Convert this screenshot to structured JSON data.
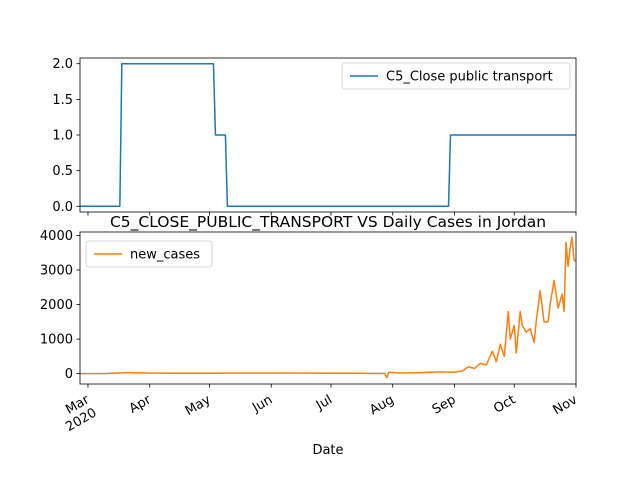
{
  "chart_data": [
    {
      "type": "line",
      "title": "",
      "xlabel": "",
      "ylabel": "",
      "xlim": [
        "2020-02-26",
        "2020-11-01"
      ],
      "ylim": [
        -0.08,
        2.08
      ],
      "yticks": [
        0.0,
        0.5,
        1.0,
        1.5,
        2.0
      ],
      "ytick_labels": [
        "0.0",
        "0.5",
        "1.0",
        "1.5",
        "2.0"
      ],
      "legend_position": "upper right",
      "grid": false,
      "series": [
        {
          "name": "C5_Close public transport",
          "color": "#1f77b4",
          "x": [
            "2020-02-26",
            "2020-03-17",
            "2020-03-18",
            "2020-05-03",
            "2020-05-04",
            "2020-05-09",
            "2020-05-10",
            "2020-08-29",
            "2020-08-30",
            "2020-11-01"
          ],
          "y": [
            0,
            0,
            2,
            2,
            1,
            1,
            0,
            0,
            1,
            1
          ]
        }
      ]
    },
    {
      "type": "line",
      "title": "C5_CLOSE_PUBLIC_TRANSPORT VS Daily Cases in Jordan",
      "xlabel": "Date",
      "ylabel": "",
      "xlim": [
        "2020-02-26",
        "2020-11-01"
      ],
      "ylim": [
        -300,
        4100
      ],
      "yticks": [
        0,
        1000,
        2000,
        3000,
        4000
      ],
      "ytick_labels": [
        "0",
        "1000",
        "2000",
        "3000",
        "4000"
      ],
      "xticks": [
        "2020-03-01",
        "2020-04-01",
        "2020-05-01",
        "2020-06-01",
        "2020-07-01",
        "2020-08-01",
        "2020-09-01",
        "2020-10-01",
        "2020-11-01"
      ],
      "xtick_labels": [
        "Mar\n2020",
        "Apr",
        "May",
        "Jun",
        "Jul",
        "Aug",
        "Sep",
        "Oct",
        "Nov"
      ],
      "legend_position": "upper left",
      "grid": false,
      "series": [
        {
          "name": "new_cases",
          "color": "#ff7f0e",
          "x": [
            "2020-02-26",
            "2020-03-10",
            "2020-03-20",
            "2020-04-01",
            "2020-04-15",
            "2020-05-01",
            "2020-05-15",
            "2020-06-01",
            "2020-06-15",
            "2020-07-01",
            "2020-07-15",
            "2020-07-28",
            "2020-07-29",
            "2020-07-30",
            "2020-08-05",
            "2020-08-15",
            "2020-08-25",
            "2020-09-01",
            "2020-09-05",
            "2020-09-08",
            "2020-09-11",
            "2020-09-14",
            "2020-09-17",
            "2020-09-20",
            "2020-09-22",
            "2020-09-24",
            "2020-09-26",
            "2020-09-28",
            "2020-09-29",
            "2020-10-01",
            "2020-10-02",
            "2020-10-04",
            "2020-10-05",
            "2020-10-07",
            "2020-10-09",
            "2020-10-11",
            "2020-10-12",
            "2020-10-14",
            "2020-10-16",
            "2020-10-18",
            "2020-10-19",
            "2020-10-21",
            "2020-10-23",
            "2020-10-25",
            "2020-10-26",
            "2020-10-27",
            "2020-10-28",
            "2020-10-29",
            "2020-10-30",
            "2020-10-31",
            "2020-11-01"
          ],
          "y": [
            0,
            5,
            30,
            15,
            10,
            10,
            15,
            20,
            15,
            10,
            10,
            5,
            -120,
            40,
            20,
            30,
            50,
            40,
            80,
            200,
            150,
            300,
            250,
            650,
            350,
            850,
            500,
            1800,
            1000,
            1400,
            600,
            1800,
            1400,
            1200,
            1300,
            900,
            1500,
            2400,
            1500,
            1500,
            2000,
            2700,
            1900,
            2300,
            1800,
            3800,
            3100,
            3600,
            3950,
            3300,
            3250
          ]
        }
      ]
    }
  ]
}
